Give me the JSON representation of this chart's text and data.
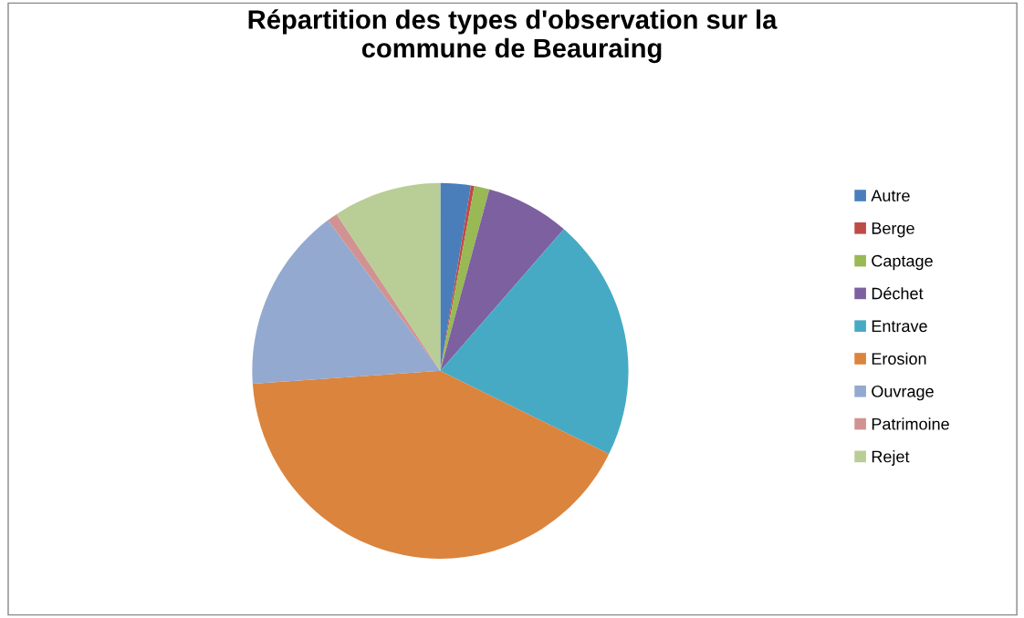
{
  "chart_data": {
    "type": "pie",
    "title": "Répartition des types d'observation sur la\ncommune de Beauraing",
    "categories": [
      "Autre",
      "Berge",
      "Captage",
      "Déchet",
      "Entrave",
      "Erosion",
      "Ouvrage",
      "Patrimoine",
      "Rejet"
    ],
    "values": [
      2.6,
      0.3,
      1.3,
      7.2,
      20.9,
      41.6,
      15.9,
      0.9,
      9.3
    ],
    "colors": [
      "#4a7ebb",
      "#be4b48",
      "#98b954",
      "#7d60a0",
      "#46aac5",
      "#db843d",
      "#93a9cf",
      "#d19392",
      "#b9cd96"
    ],
    "legend": "right"
  }
}
